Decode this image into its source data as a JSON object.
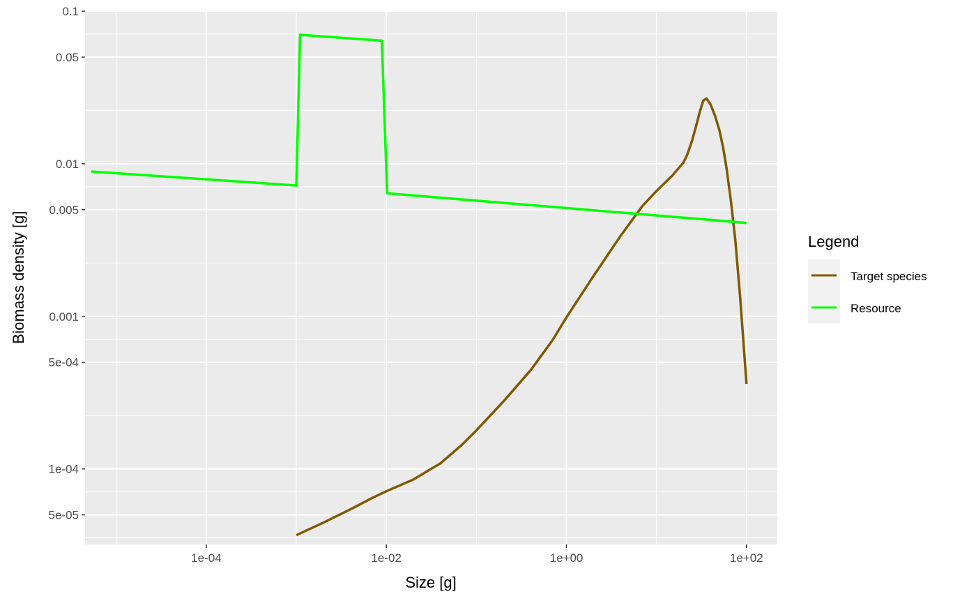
{
  "chart_data": {
    "type": "line",
    "xlabel": "Size [g]",
    "ylabel": "Biomass density [g]",
    "xscale": "log10",
    "yscale": "log10",
    "xlim": [
      4.5e-06,
      220
    ],
    "ylim": [
      3.2e-05,
      0.1
    ],
    "x_ticks": [
      {
        "value": 0.0001,
        "label": "1e-04"
      },
      {
        "value": 0.01,
        "label": "1e-02"
      },
      {
        "value": 1,
        "label": "1e+00"
      },
      {
        "value": 100,
        "label": "1e+02"
      }
    ],
    "y_ticks": [
      {
        "value": 0.1,
        "label": "0.1"
      },
      {
        "value": 0.05,
        "label": "0.05"
      },
      {
        "value": 0.01,
        "label": "0.01"
      },
      {
        "value": 0.005,
        "label": "0.005"
      },
      {
        "value": 0.001,
        "label": "0.001"
      },
      {
        "value": 0.0005,
        "label": "5e-04"
      },
      {
        "value": 0.0001,
        "label": "1e-04"
      },
      {
        "value": 5e-05,
        "label": "5e-05"
      }
    ],
    "grid": true,
    "legend": {
      "title": "Legend",
      "position": "right"
    },
    "series": [
      {
        "name": "Target species",
        "color": "#7f5a00",
        "points": [
          [
            0.001,
            3.68e-05
          ],
          [
            0.002,
            4.45e-05
          ],
          [
            0.004,
            5.44e-05
          ],
          [
            0.007,
            6.46e-05
          ],
          [
            0.01,
            7.14e-05
          ],
          [
            0.02,
            8.53e-05
          ],
          [
            0.04,
            0.000109
          ],
          [
            0.07,
            0.000145
          ],
          [
            0.1,
            0.000179
          ],
          [
            0.2,
            0.000277
          ],
          [
            0.4,
            0.000443
          ],
          [
            0.7,
            0.000697
          ],
          [
            1,
            0.000984
          ],
          [
            2,
            0.00184
          ],
          [
            4,
            0.00337
          ],
          [
            7,
            0.00529
          ],
          [
            10,
            0.00662
          ],
          [
            15,
            0.00836
          ],
          [
            20,
            0.0102
          ],
          [
            22,
            0.0115
          ],
          [
            25,
            0.0143
          ],
          [
            28,
            0.0183
          ],
          [
            30,
            0.0215
          ],
          [
            33,
            0.0258
          ],
          [
            36,
            0.0268
          ],
          [
            40,
            0.0244
          ],
          [
            45,
            0.0204
          ],
          [
            50,
            0.0166
          ],
          [
            55,
            0.0128
          ],
          [
            60,
            0.0094
          ],
          [
            67,
            0.00577
          ],
          [
            75,
            0.00321
          ],
          [
            85,
            0.00133
          ],
          [
            100,
            0.00036
          ]
        ]
      },
      {
        "name": "Resource",
        "color": "#00ff00",
        "points": [
          [
            5.25e-06,
            0.0089
          ],
          [
            0.001,
            0.0072
          ],
          [
            0.0011,
            0.07
          ],
          [
            0.0089,
            0.064
          ],
          [
            0.0102,
            0.0064
          ],
          [
            100,
            0.0041
          ]
        ]
      }
    ]
  }
}
